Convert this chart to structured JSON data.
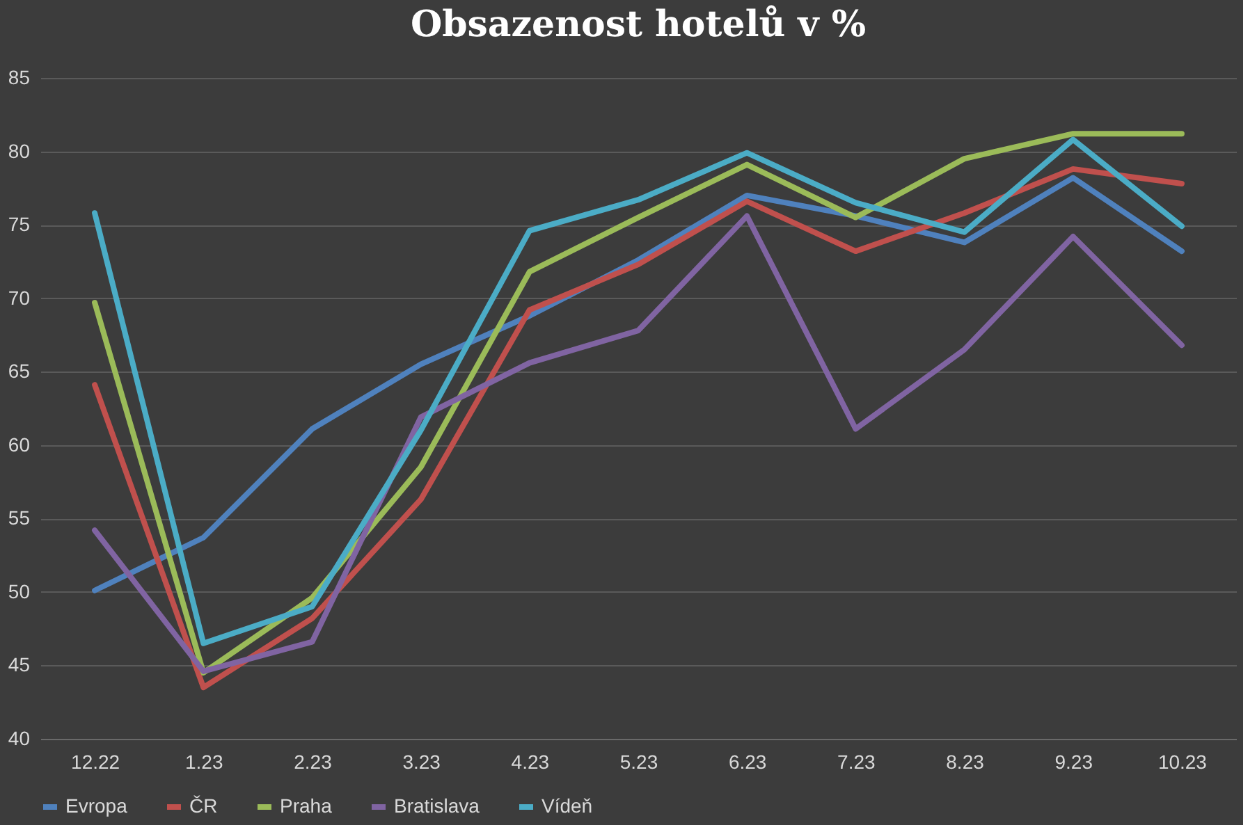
{
  "chart_data": {
    "type": "line",
    "title": "Obsazenost hotelů v %",
    "categories": [
      "12.22",
      "1.23",
      "2.23",
      "3.23",
      "4.23",
      "5.23",
      "6.23",
      "7.23",
      "8.23",
      "9.23",
      "10.23"
    ],
    "series": [
      {
        "name": "Evropa",
        "color": "#4f81bd",
        "values": [
          50.1,
          53.7,
          61.1,
          65.5,
          68.8,
          72.6,
          77.0,
          75.6,
          73.8,
          78.2,
          73.2
        ]
      },
      {
        "name": "ČR",
        "color": "#c0504d",
        "values": [
          64.1,
          43.5,
          48.2,
          56.3,
          69.2,
          72.3,
          76.6,
          73.2,
          75.8,
          78.8,
          77.8
        ]
      },
      {
        "name": "Praha",
        "color": "#9bbb59",
        "values": [
          69.7,
          44.5,
          49.6,
          58.5,
          71.8,
          75.5,
          79.1,
          75.5,
          79.5,
          81.2,
          81.2
        ]
      },
      {
        "name": "Bratislava",
        "color": "#8064a2",
        "values": [
          54.2,
          44.6,
          46.6,
          61.9,
          65.6,
          67.8,
          75.6,
          61.1,
          66.5,
          74.2,
          66.8
        ]
      },
      {
        "name": "Vídeň",
        "color": "#4bacc6",
        "values": [
          75.8,
          46.5,
          49.0,
          61.0,
          74.6,
          76.7,
          79.9,
          76.5,
          74.5,
          80.8,
          74.9
        ]
      }
    ],
    "ylim": [
      40,
      85
    ],
    "yticks": [
      40,
      45,
      50,
      55,
      60,
      65,
      70,
      75,
      80,
      85
    ],
    "grid": "y",
    "legend": "bottom",
    "marker": "none",
    "line_style": "solid"
  }
}
